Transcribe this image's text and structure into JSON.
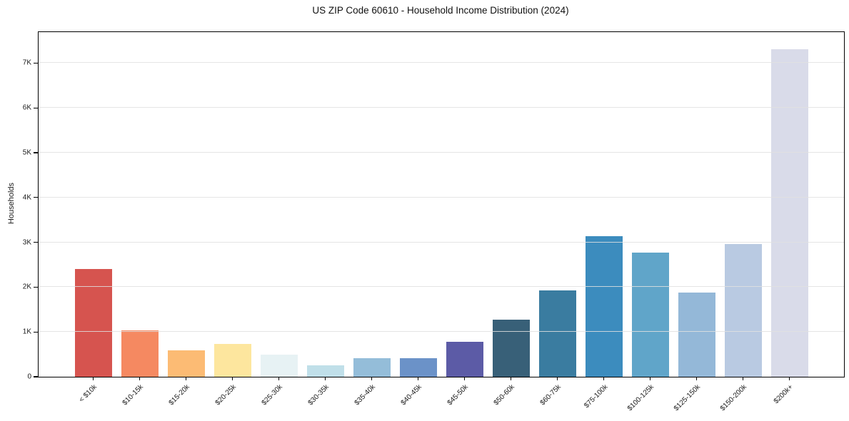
{
  "chart_data": {
    "type": "bar",
    "title": "US ZIP Code 60610 - Household Income Distribution (2024)",
    "xlabel": "",
    "ylabel": "Households",
    "categories": [
      "< $10k",
      "$10-15k",
      "$15-20k",
      "$20-25k",
      "$25-30k",
      "$30-35k",
      "$35-40k",
      "$40-45k",
      "$45-50k",
      "$50-60k",
      "$60-75k",
      "$75-100k",
      "$100-125k",
      "$125-150k",
      "$150-200k",
      "$200k+"
    ],
    "values": [
      2400,
      1040,
      595,
      730,
      490,
      250,
      415,
      420,
      780,
      1280,
      1930,
      3130,
      2770,
      1880,
      2960,
      7310
    ],
    "bar_colors": [
      "#d6544f",
      "#f58961",
      "#fcbb74",
      "#fde69e",
      "#e7f2f4",
      "#c0dfe9",
      "#94bdd9",
      "#6b92c8",
      "#5c5ba6",
      "#386078",
      "#3a7ca0",
      "#3c8cbe",
      "#60a5c9",
      "#94b8d8",
      "#b9cae2",
      "#d9dbe9"
    ],
    "ytick_labels": [
      "0",
      "1K",
      "2K",
      "3K",
      "4K",
      "5K",
      "6K",
      "7K"
    ],
    "ytick_values": [
      0,
      1000,
      2000,
      3000,
      4000,
      5000,
      6000,
      7000
    ],
    "ylim": [
      0,
      7690
    ],
    "grid": "horizontal",
    "legend": "none",
    "grid_color": "#e9e9e9",
    "axis_color": "#000000",
    "text_color": "#1a1a1a"
  }
}
